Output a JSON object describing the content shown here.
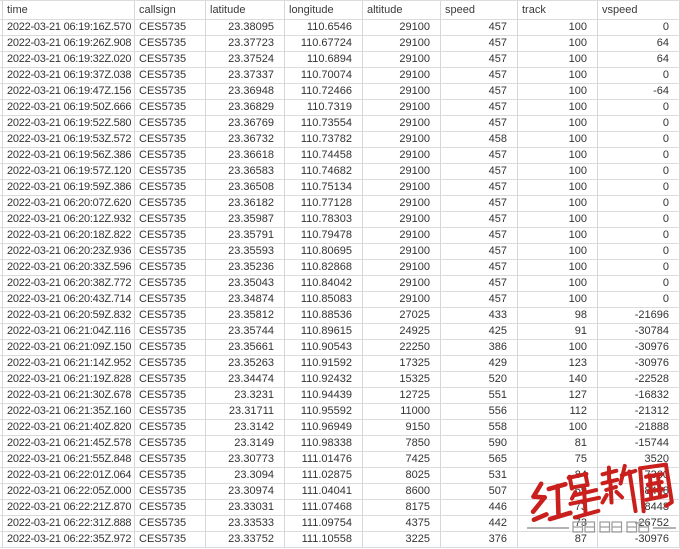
{
  "table": {
    "columns": [
      {
        "key": "time",
        "label": "time",
        "align": "left"
      },
      {
        "key": "callsign",
        "label": "callsign",
        "align": "left"
      },
      {
        "key": "latitude",
        "label": "latitude",
        "align": "right"
      },
      {
        "key": "longitude",
        "label": "longitude",
        "align": "right"
      },
      {
        "key": "altitude",
        "label": "altitude",
        "align": "right"
      },
      {
        "key": "speed",
        "label": "speed",
        "align": "right"
      },
      {
        "key": "track",
        "label": "track",
        "align": "right"
      },
      {
        "key": "vspeed",
        "label": "vspeed",
        "align": "right"
      }
    ],
    "rows": [
      [
        "2022-03-21 06:19:16Z.570",
        "CES5735",
        "23.38095",
        "110.6546",
        "29100",
        "457",
        "100",
        "0"
      ],
      [
        "2022-03-21 06:19:26Z.908",
        "CES5735",
        "23.37723",
        "110.67724",
        "29100",
        "457",
        "100",
        "64"
      ],
      [
        "2022-03-21 06:19:32Z.020",
        "CES5735",
        "23.37524",
        "110.6894",
        "29100",
        "457",
        "100",
        "64"
      ],
      [
        "2022-03-21 06:19:37Z.038",
        "CES5735",
        "23.37337",
        "110.70074",
        "29100",
        "457",
        "100",
        "0"
      ],
      [
        "2022-03-21 06:19:47Z.156",
        "CES5735",
        "23.36948",
        "110.72466",
        "29100",
        "457",
        "100",
        "-64"
      ],
      [
        "2022-03-21 06:19:50Z.666",
        "CES5735",
        "23.36829",
        "110.7319",
        "29100",
        "457",
        "100",
        "0"
      ],
      [
        "2022-03-21 06:19:52Z.580",
        "CES5735",
        "23.36769",
        "110.73554",
        "29100",
        "457",
        "100",
        "0"
      ],
      [
        "2022-03-21 06:19:53Z.572",
        "CES5735",
        "23.36732",
        "110.73782",
        "29100",
        "458",
        "100",
        "0"
      ],
      [
        "2022-03-21 06:19:56Z.386",
        "CES5735",
        "23.36618",
        "110.74458",
        "29100",
        "457",
        "100",
        "0"
      ],
      [
        "2022-03-21 06:19:57Z.120",
        "CES5735",
        "23.36583",
        "110.74682",
        "29100",
        "457",
        "100",
        "0"
      ],
      [
        "2022-03-21 06:19:59Z.386",
        "CES5735",
        "23.36508",
        "110.75134",
        "29100",
        "457",
        "100",
        "0"
      ],
      [
        "2022-03-21 06:20:07Z.620",
        "CES5735",
        "23.36182",
        "110.77128",
        "29100",
        "457",
        "100",
        "0"
      ],
      [
        "2022-03-21 06:20:12Z.932",
        "CES5735",
        "23.35987",
        "110.78303",
        "29100",
        "457",
        "100",
        "0"
      ],
      [
        "2022-03-21 06:20:18Z.822",
        "CES5735",
        "23.35791",
        "110.79478",
        "29100",
        "457",
        "100",
        "0"
      ],
      [
        "2022-03-21 06:20:23Z.936",
        "CES5735",
        "23.35593",
        "110.80695",
        "29100",
        "457",
        "100",
        "0"
      ],
      [
        "2022-03-21 06:20:33Z.596",
        "CES5735",
        "23.35236",
        "110.82868",
        "29100",
        "457",
        "100",
        "0"
      ],
      [
        "2022-03-21 06:20:38Z.772",
        "CES5735",
        "23.35043",
        "110.84042",
        "29100",
        "457",
        "100",
        "0"
      ],
      [
        "2022-03-21 06:20:43Z.714",
        "CES5735",
        "23.34874",
        "110.85083",
        "29100",
        "457",
        "100",
        "0"
      ],
      [
        "2022-03-21 06:20:59Z.832",
        "CES5735",
        "23.35812",
        "110.88536",
        "27025",
        "433",
        "98",
        "-21696"
      ],
      [
        "2022-03-21 06:21:04Z.116",
        "CES5735",
        "23.35744",
        "110.89615",
        "24925",
        "425",
        "91",
        "-30784"
      ],
      [
        "2022-03-21 06:21:09Z.150",
        "CES5735",
        "23.35661",
        "110.90543",
        "22250",
        "386",
        "100",
        "-30976"
      ],
      [
        "2022-03-21 06:21:14Z.952",
        "CES5735",
        "23.35263",
        "110.91592",
        "17325",
        "429",
        "123",
        "-30976"
      ],
      [
        "2022-03-21 06:21:19Z.828",
        "CES5735",
        "23.34474",
        "110.92432",
        "15325",
        "520",
        "140",
        "-22528"
      ],
      [
        "2022-03-21 06:21:30Z.678",
        "CES5735",
        "23.3231",
        "110.94439",
        "12725",
        "551",
        "127",
        "-16832"
      ],
      [
        "2022-03-21 06:21:35Z.160",
        "CES5735",
        "23.31711",
        "110.95592",
        "11000",
        "556",
        "112",
        "-21312"
      ],
      [
        "2022-03-21 06:21:40Z.820",
        "CES5735",
        "23.3142",
        "110.96949",
        "9150",
        "558",
        "100",
        "-21888"
      ],
      [
        "2022-03-21 06:21:45Z.578",
        "CES5735",
        "23.3149",
        "110.98338",
        "7850",
        "590",
        "81",
        "-15744"
      ],
      [
        "2022-03-21 06:21:55Z.848",
        "CES5735",
        "23.30773",
        "111.01476",
        "7425",
        "565",
        "75",
        "3520"
      ],
      [
        "2022-03-21 06:22:01Z.064",
        "CES5735",
        "23.3094",
        "111.02875",
        "8025",
        "531",
        "84",
        "7360"
      ],
      [
        "2022-03-21 06:22:05Z.000",
        "CES5735",
        "23.30974",
        "111.04041",
        "8600",
        "507",
        "69",
        "8448"
      ],
      [
        "2022-03-21 06:22:21Z.870",
        "CES5735",
        "23.33031",
        "111.07468",
        "8175",
        "446",
        "73",
        "-8448"
      ],
      [
        "2022-03-21 06:22:31Z.888",
        "CES5735",
        "23.33533",
        "111.09754",
        "4375",
        "442",
        "73",
        "-26752"
      ],
      [
        "2022-03-21 06:22:35Z.972",
        "CES5735",
        "23.33752",
        "111.10558",
        "3225",
        "376",
        "87",
        "-30976"
      ]
    ]
  },
  "watermark": {
    "logo_text": "红星新闻",
    "tagline": "深度 态度 温度",
    "logo_color": "#c9201d",
    "tagline_color": "#9a9a9a"
  }
}
